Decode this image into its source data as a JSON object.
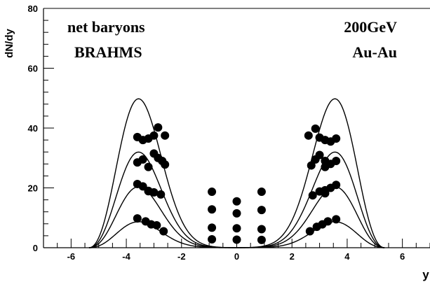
{
  "chart_data": {
    "type": "scatter",
    "title": "",
    "xlabel": "y",
    "ylabel": "dN/dy",
    "xlim": [
      -7,
      7
    ],
    "ylim": [
      0,
      80
    ],
    "x_tick_labels": [
      "-6",
      "-4",
      "-2",
      "0",
      "2",
      "4",
      "6"
    ],
    "y_tick_labels": [
      "0",
      "20",
      "40",
      "60",
      "80"
    ],
    "grid": false,
    "annotations": {
      "top_left_line1": "net baryons",
      "top_left_line2": "BRAHMS",
      "top_right_line1": "200GeV",
      "top_right_line2": "Au-Au"
    },
    "curves": [
      {
        "x_edge": 5.35,
        "peak_x": 3.7,
        "peak_y": 9.5,
        "center_y": 2.7,
        "sigma": 0.9
      },
      {
        "x_edge": 5.35,
        "peak_x": 3.7,
        "peak_y": 22.3,
        "center_y": 6.5,
        "sigma": 0.9
      },
      {
        "x_edge": 5.35,
        "peak_x": 3.7,
        "peak_y": 35.0,
        "center_y": 10.5,
        "sigma": 0.9
      },
      {
        "x_edge": 5.35,
        "peak_x": 3.7,
        "peak_y": 54.5,
        "center_y": 16.5,
        "sigma": 0.9
      }
    ],
    "series": [
      {
        "x": [
          -3.6,
          -3.3,
          -3.1,
          -2.9,
          -2.65,
          -0.9,
          0,
          0.9,
          2.65,
          2.9,
          3.1,
          3.3,
          3.6
        ],
        "y": [
          9.8,
          8.8,
          7.8,
          7.5,
          5.5,
          2.8,
          2.7,
          2.6,
          5.5,
          7.0,
          7.8,
          8.8,
          9.5
        ]
      },
      {
        "x": [
          -3.6,
          -3.4,
          -3.2,
          -3.0,
          -2.75,
          -0.9,
          0,
          0.9,
          2.75,
          3.0,
          3.2,
          3.4,
          3.6
        ],
        "y": [
          21.3,
          20.5,
          19.0,
          18.5,
          17.8,
          6.7,
          6.5,
          6.2,
          17.5,
          18.8,
          18.2,
          20.0,
          21.0
        ],
        "extra": [
          [
            -3.2,
            18.9
          ],
          [
            3.2,
            19.2
          ]
        ]
      },
      {
        "x": [
          -3.6,
          -3.4,
          -3.2,
          -3.0,
          -2.85,
          -2.7,
          -0.9,
          0,
          0.9,
          2.7,
          2.85,
          3.0,
          3.2,
          3.4,
          3.6
        ],
        "y": [
          28.5,
          29.5,
          27.0,
          31.5,
          30.0,
          29.0,
          12.8,
          11.5,
          12.6,
          27.5,
          29.5,
          31.0,
          27.0,
          28.0,
          29.0
        ],
        "extra": [
          [
            -2.6,
            27.8
          ],
          [
            3.2,
            29.0
          ]
        ]
      },
      {
        "x": [
          -3.6,
          -3.4,
          -3.2,
          -3.0,
          -2.85,
          -2.6,
          -0.9,
          0,
          0.9,
          2.6,
          2.85,
          3.0,
          3.2,
          3.4,
          3.6
        ],
        "y": [
          37.0,
          36.0,
          36.5,
          37.5,
          40.2,
          37.5,
          18.7,
          15.5,
          18.7,
          37.5,
          39.8,
          36.8,
          36.0,
          35.5,
          36.5
        ]
      }
    ]
  }
}
